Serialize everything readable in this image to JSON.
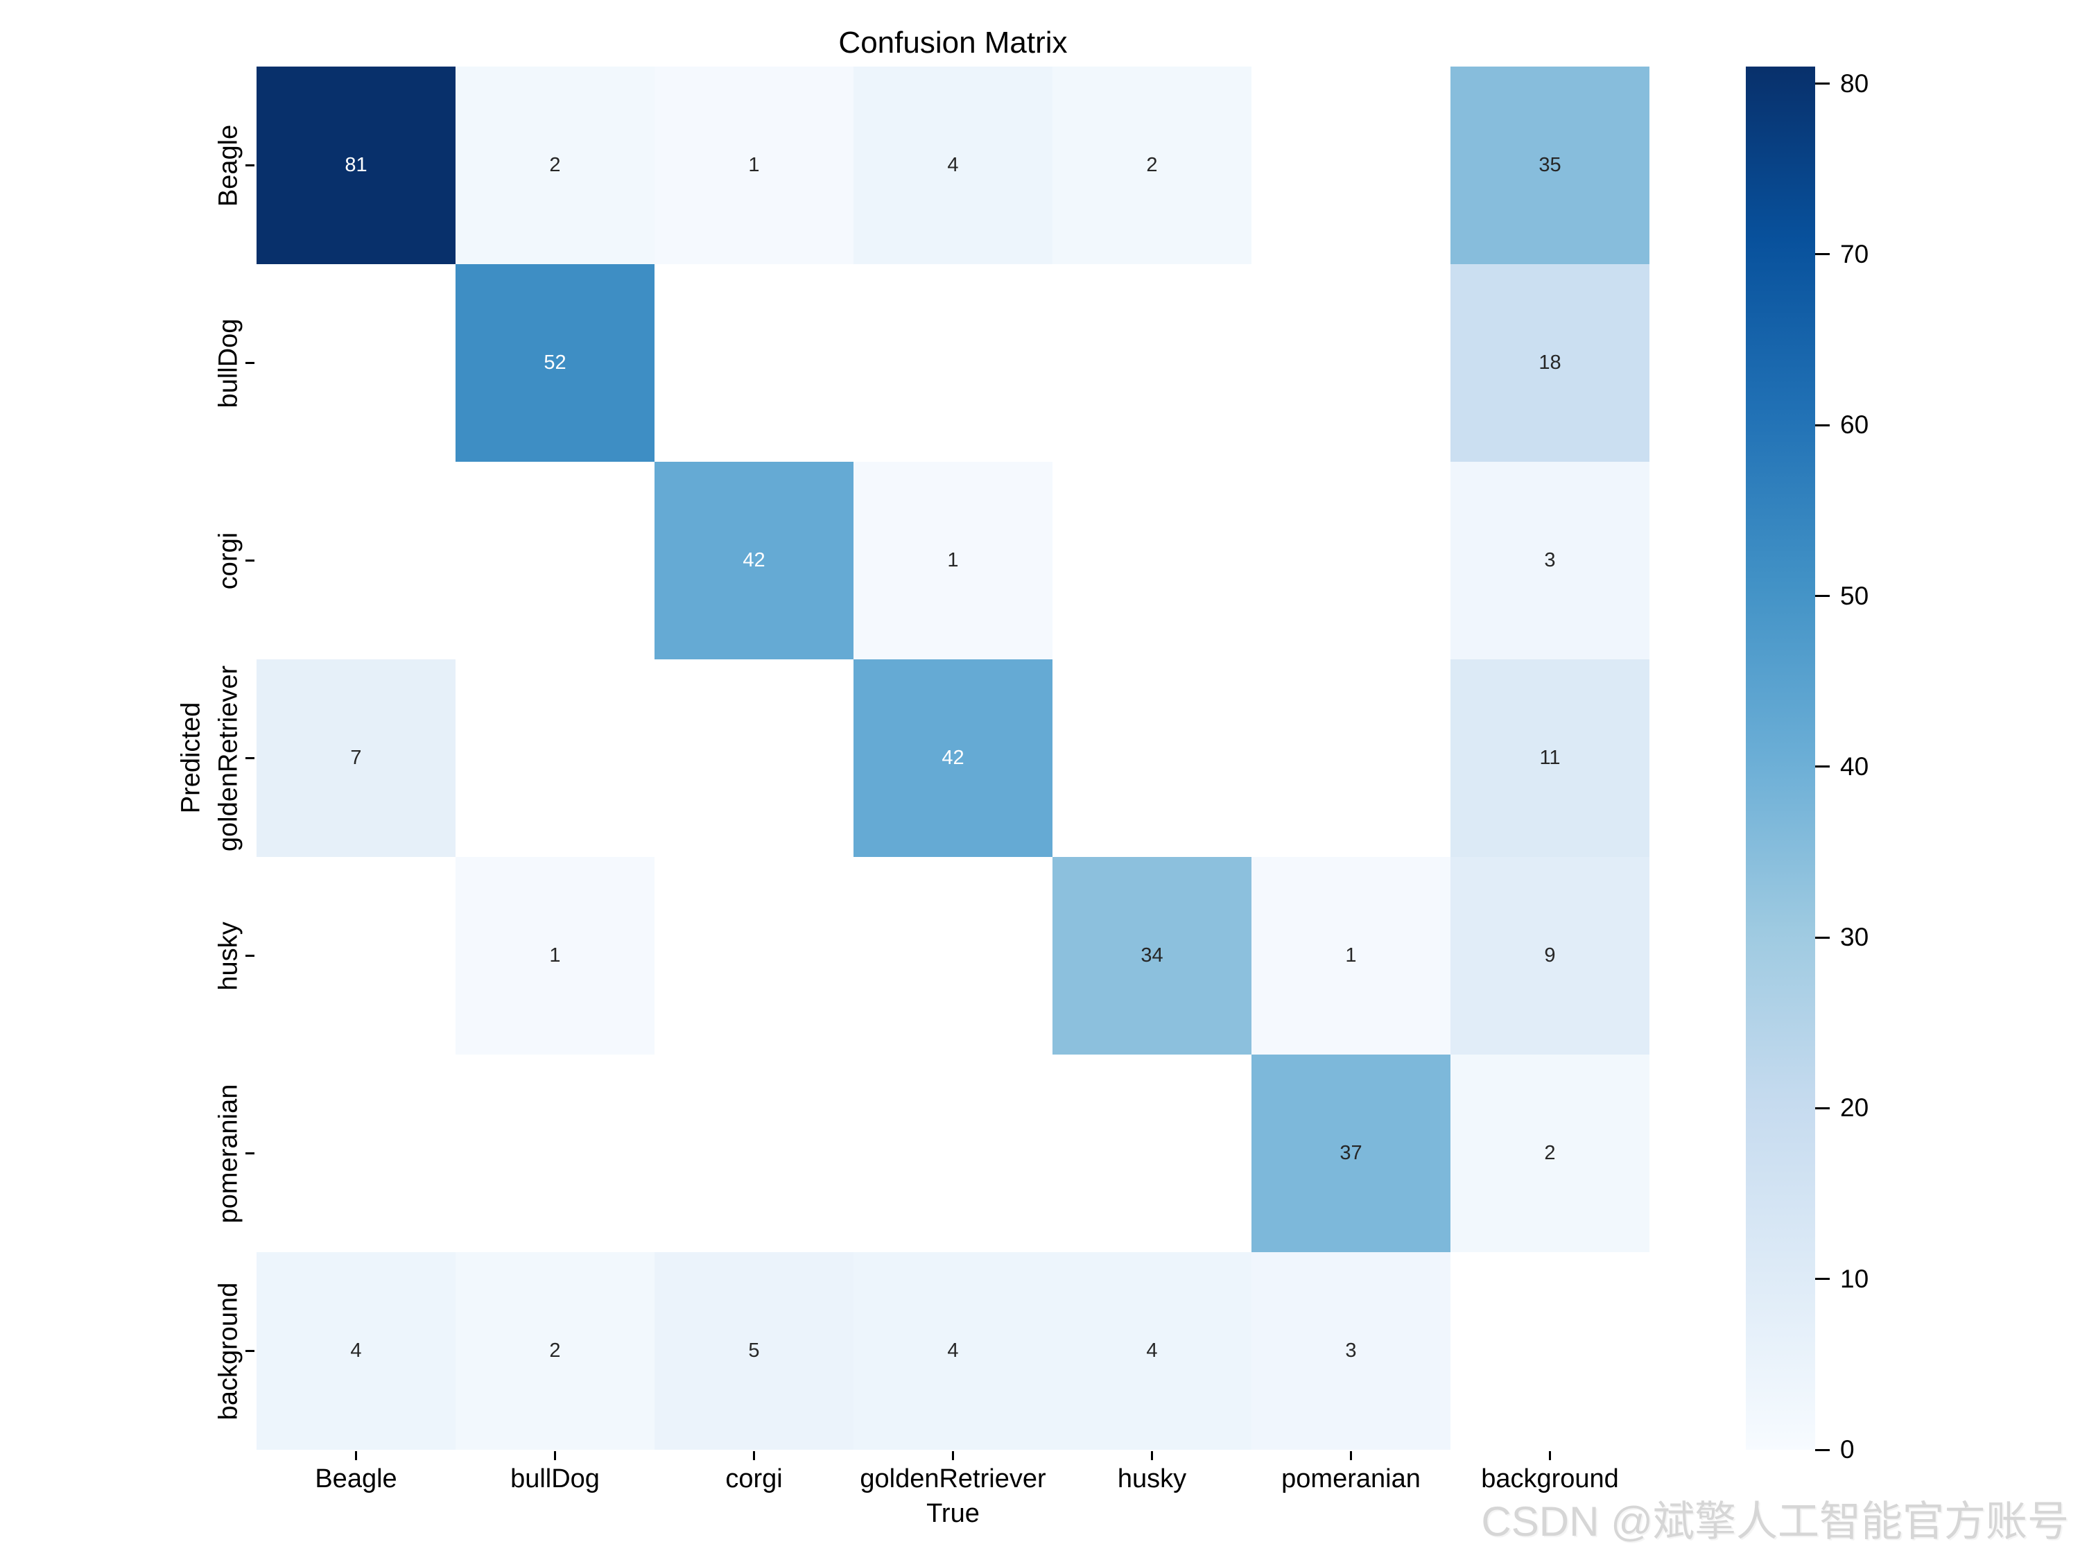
{
  "chart_data": {
    "type": "heatmap",
    "title": "Confusion Matrix",
    "xlabel": "True",
    "ylabel": "Predicted",
    "x_categories": [
      "Beagle",
      "bullDog",
      "corgi",
      "goldenRetriever",
      "husky",
      "pomeranian",
      "background"
    ],
    "y_categories": [
      "Beagle",
      "bullDog",
      "corgi",
      "goldenRetriever",
      "husky",
      "pomeranian",
      "background"
    ],
    "matrix": [
      [
        81,
        2,
        1,
        4,
        2,
        null,
        35
      ],
      [
        null,
        52,
        null,
        null,
        null,
        null,
        18
      ],
      [
        null,
        null,
        42,
        1,
        null,
        null,
        3
      ],
      [
        7,
        null,
        null,
        42,
        null,
        null,
        11
      ],
      [
        null,
        1,
        null,
        null,
        34,
        1,
        9
      ],
      [
        null,
        null,
        null,
        null,
        null,
        37,
        2
      ],
      [
        4,
        2,
        5,
        4,
        4,
        3,
        null
      ]
    ],
    "vmin": 0,
    "vmax": 81,
    "grid": false,
    "legend_position": "colorbar-right",
    "colormap": {
      "name": "Blues",
      "stops": [
        {
          "pos": 0.0,
          "rgb": [
            247,
            251,
            255
          ]
        },
        {
          "pos": 0.125,
          "rgb": [
            222,
            235,
            247
          ]
        },
        {
          "pos": 0.25,
          "rgb": [
            198,
            219,
            239
          ]
        },
        {
          "pos": 0.375,
          "rgb": [
            158,
            202,
            225
          ]
        },
        {
          "pos": 0.5,
          "rgb": [
            107,
            174,
            214
          ]
        },
        {
          "pos": 0.625,
          "rgb": [
            66,
            146,
            198
          ]
        },
        {
          "pos": 0.75,
          "rgb": [
            33,
            113,
            181
          ]
        },
        {
          "pos": 0.875,
          "rgb": [
            8,
            81,
            156
          ]
        },
        {
          "pos": 1.0,
          "rgb": [
            8,
            48,
            107
          ]
        }
      ]
    },
    "masked_cell_color": "#ffffff",
    "annotation_colors": {
      "on_dark": "#ffffff",
      "on_light": "#262626"
    },
    "axis_tick_color": "#000000",
    "colorbar_ticks": [
      80,
      70,
      60,
      50,
      40,
      30,
      20,
      10,
      0
    ]
  },
  "watermark": {
    "text": "CSDN @斌擎人工智能官方账号",
    "color": "#d6d6d6"
  }
}
